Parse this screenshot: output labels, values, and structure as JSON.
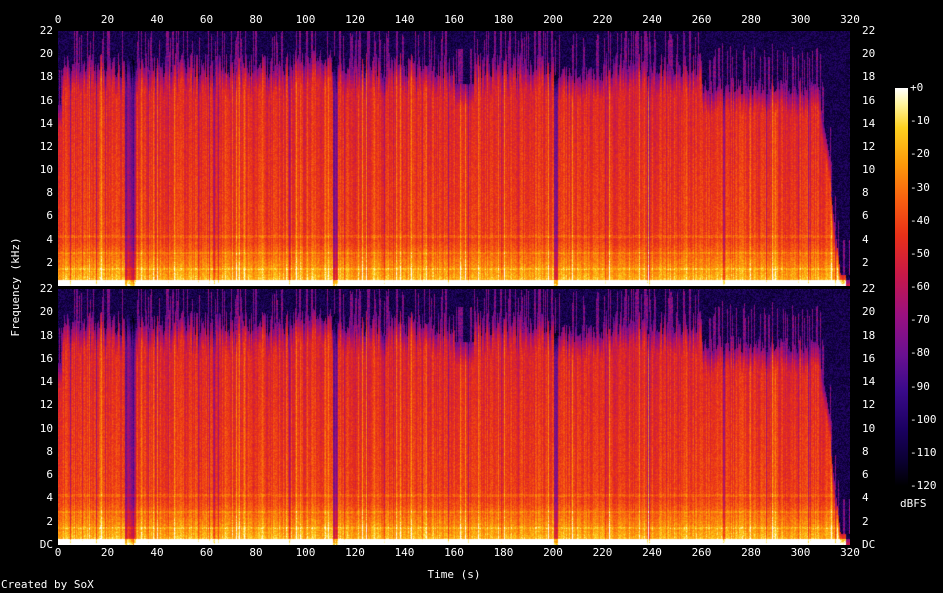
{
  "chart_data": {
    "type": "heatmap",
    "title": "",
    "xlabel": "Time (s)",
    "ylabel": "Frequency (kHz)",
    "xlim": [
      0,
      320
    ],
    "ylim": [
      0,
      22
    ],
    "x_ticks": [
      "0",
      "20",
      "40",
      "60",
      "80",
      "100",
      "120",
      "140",
      "160",
      "180",
      "200",
      "220",
      "240",
      "260",
      "280",
      "300",
      "320"
    ],
    "y_ticks_upper": [
      "22",
      "20",
      "18",
      "16",
      "14",
      "12",
      "10",
      "8",
      "6",
      "4",
      "2"
    ],
    "y_ticks_lower": [
      "22",
      "20",
      "18",
      "16",
      "14",
      "12",
      "10",
      "8",
      "6",
      "4",
      "2",
      "DC"
    ],
    "channels": 2,
    "colorbar": {
      "label": "dBFS",
      "ticks": [
        "+0",
        "-10",
        "-20",
        "-30",
        "-40",
        "-50",
        "-60",
        "-70",
        "-80",
        "-90",
        "-100",
        "-110",
        "-120"
      ],
      "range": [
        -120,
        0
      ]
    },
    "footer": "Created by SoX",
    "colors": {
      "background": "#000000",
      "text": "#ffffff"
    }
  }
}
